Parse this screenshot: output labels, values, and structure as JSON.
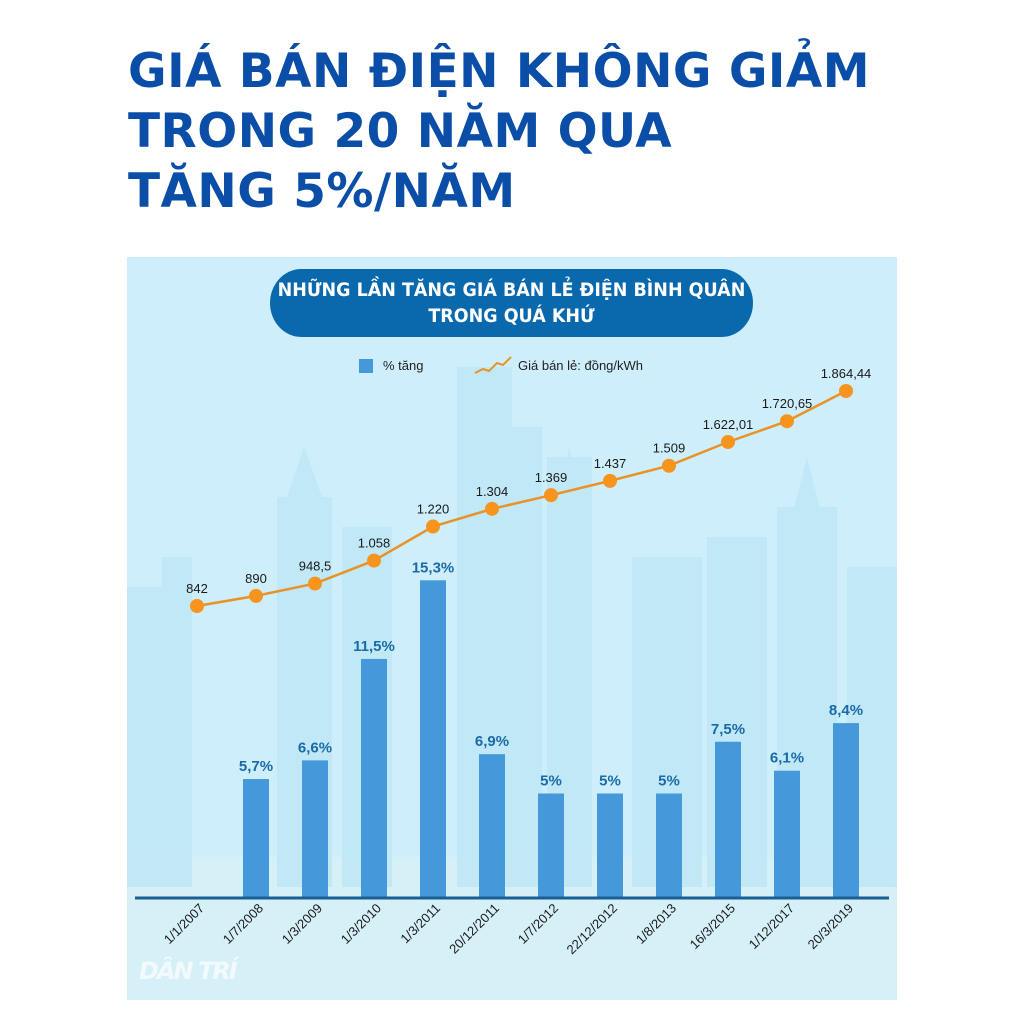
{
  "headline": {
    "line1": "GIÁ BÁN ĐIỆN KHÔNG GIẢM",
    "line2": "TRONG 20 NĂM QUA",
    "line3": "TĂNG 5%/NĂM"
  },
  "panel": {
    "title_line1": "NHỮNG LẦN TĂNG GIÁ BÁN LẺ ĐIỆN BÌNH QUÂN",
    "title_line2": "TRONG QUÁ KHỨ",
    "watermark": "DÂN TRÍ"
  },
  "legend": {
    "bar_label": "% tăng",
    "line_label": "Giá bán lẻ: đồng/kWh"
  },
  "colors": {
    "headline": "#0a4ea8",
    "pill": "#0a68ad",
    "bar": "#4599db",
    "bar_label": "#1a6aa8",
    "line": "#e8922a",
    "marker": "#f7941d",
    "axis": "#1a5e96",
    "panel_bg": "#cdeefa"
  },
  "chart_data": {
    "type": "bar+line",
    "title": "NHỮNG LẦN TĂNG GIÁ BÁN LẺ ĐIỆN BÌNH QUÂN TRONG QUÁ KHỨ",
    "categories": [
      "1/1/2007",
      "1/7/2008",
      "1/3/2009",
      "1/3/2010",
      "1/3/2011",
      "20/12/2011",
      "1/7/2012",
      "22/12/2012",
      "1/8/2013",
      "16/3/2015",
      "1/12/2017",
      "20/3/2019"
    ],
    "series": [
      {
        "name": "% tăng",
        "type": "bar",
        "values": [
          null,
          5.7,
          6.6,
          11.5,
          15.3,
          6.9,
          5,
          5,
          5,
          7.5,
          6.1,
          8.4
        ],
        "labels": [
          "",
          "5,7%",
          "6,6%",
          "11,5%",
          "15,3%",
          "6,9%",
          "5%",
          "5%",
          "5%",
          "7,5%",
          "6,1%",
          "8,4%"
        ]
      },
      {
        "name": "Giá bán lẻ: đồng/kWh",
        "type": "line",
        "values": [
          842,
          890,
          948.5,
          1058,
          1220,
          1304,
          1369,
          1437,
          1509,
          1622.01,
          1720.65,
          1864.44
        ],
        "labels": [
          "842",
          "890",
          "948,5",
          "1.058",
          "1.220",
          "1.304",
          "1.369",
          "1.437",
          "1.509",
          "1.622,01",
          "1.720,65",
          "1.864,44"
        ]
      }
    ],
    "xlabel": "",
    "ylabel": "",
    "grid": false,
    "legend_position": "top"
  }
}
